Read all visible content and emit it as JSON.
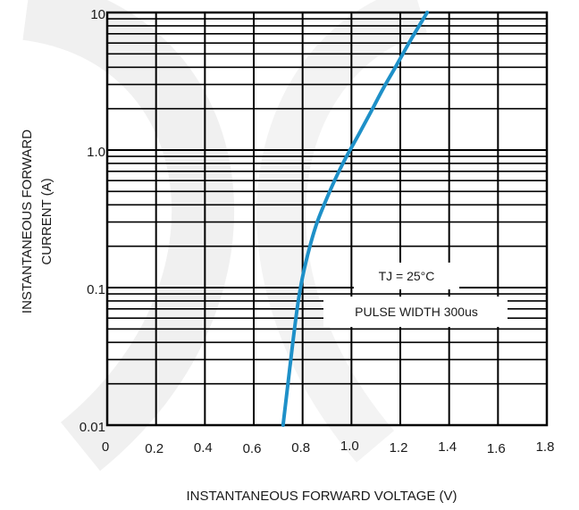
{
  "chart_data": {
    "type": "line",
    "xlabel": "INSTANTANEOUS FORWARD VOLTAGE (V)",
    "ylabel_line1": "INSTANTANEOUS FORWARD",
    "ylabel_line2": "CURRENT  (A)",
    "xlim": [
      0,
      1.8
    ],
    "ylim": [
      0.01,
      10
    ],
    "yscale": "log",
    "grid": true,
    "x_ticks": [
      {
        "value": 0,
        "label": "0"
      },
      {
        "value": 0.2,
        "label": "0.2"
      },
      {
        "value": 0.4,
        "label": "0.4"
      },
      {
        "value": 0.6,
        "label": "0.6"
      },
      {
        "value": 0.8,
        "label": "0.8"
      },
      {
        "value": 1.0,
        "label": "1.0"
      },
      {
        "value": 1.2,
        "label": "1.2"
      },
      {
        "value": 1.4,
        "label": "1.4"
      },
      {
        "value": 1.6,
        "label": "1.6"
      },
      {
        "value": 1.8,
        "label": "1.8"
      }
    ],
    "y_ticks": [
      {
        "value": 10,
        "label": "10"
      },
      {
        "value": 1,
        "label": "1.0"
      },
      {
        "value": 0.1,
        "label": "0.1"
      },
      {
        "value": 0.01,
        "label": "0.01"
      }
    ],
    "annotations": [
      "TJ = 25°C",
      "PULSE WIDTH 300us"
    ],
    "colors": {
      "curve": "#1e90c8",
      "grid": "#000000",
      "watermark": "#f0f0f0"
    },
    "series": [
      {
        "x": [
          0.72,
          0.74,
          0.76,
          0.78,
          0.8,
          0.83,
          0.86,
          0.9,
          0.94,
          0.98,
          1.03,
          1.08,
          1.13,
          1.18,
          1.24,
          1.31
        ],
        "y": [
          0.01,
          0.02,
          0.04,
          0.075,
          0.12,
          0.2,
          0.3,
          0.45,
          0.65,
          0.9,
          1.3,
          1.9,
          2.8,
          4.0,
          6.2,
          10
        ]
      }
    ]
  }
}
